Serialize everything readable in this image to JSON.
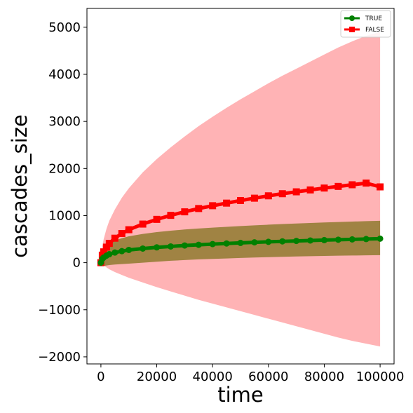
{
  "chart_data": {
    "type": "line",
    "xlabel": "time",
    "ylabel": "cascades_size",
    "xlim": [
      -5000,
      105000
    ],
    "ylim": [
      -2150,
      5400
    ],
    "xticks": [
      0,
      20000,
      40000,
      60000,
      80000,
      100000
    ],
    "xtick_labels": [
      "0",
      "20000",
      "40000",
      "60000",
      "80000",
      "100000"
    ],
    "yticks": [
      -2000,
      -1000,
      0,
      1000,
      2000,
      3000,
      4000,
      5000
    ],
    "ytick_labels": [
      "−2000",
      "−1000",
      "0",
      "1000",
      "2000",
      "3000",
      "4000",
      "5000"
    ],
    "grid": false,
    "legend": {
      "placement": "top-right"
    },
    "x": [
      0,
      500,
      1000,
      2000,
      3000,
      5000,
      7500,
      10000,
      15000,
      20000,
      25000,
      30000,
      35000,
      40000,
      45000,
      50000,
      55000,
      60000,
      65000,
      70000,
      75000,
      80000,
      85000,
      90000,
      95000,
      100000
    ],
    "series": [
      {
        "name": "TRUE",
        "color": "#008000",
        "marker": "circle",
        "values": [
          0,
          80,
          110,
          150,
          180,
          215,
          245,
          270,
          300,
          325,
          345,
          365,
          380,
          395,
          408,
          420,
          432,
          443,
          453,
          462,
          471,
          480,
          488,
          495,
          502,
          510
        ],
        "band_upper": [
          0,
          230,
          290,
          360,
          410,
          470,
          520,
          560,
          610,
          650,
          680,
          705,
          725,
          745,
          762,
          778,
          793,
          807,
          820,
          832,
          843,
          854,
          864,
          873,
          882,
          890
        ],
        "band_lower": [
          0,
          -70,
          -70,
          -60,
          -50,
          -40,
          -30,
          -20,
          0,
          20,
          40,
          55,
          70,
          80,
          90,
          100,
          110,
          118,
          125,
          132,
          138,
          143,
          148,
          152,
          156,
          160
        ],
        "band_color": "#8f7a2f"
      },
      {
        "name": "FALSE",
        "color": "#ff0000",
        "marker": "square",
        "values": [
          0,
          160,
          230,
          330,
          410,
          520,
          620,
          700,
          820,
          920,
          1005,
          1080,
          1150,
          1210,
          1265,
          1320,
          1370,
          1420,
          1465,
          1505,
          1545,
          1585,
          1620,
          1655,
          1690,
          1610
        ],
        "band_upper": [
          0,
          350,
          500,
          720,
          890,
          1130,
          1380,
          1580,
          1920,
          2200,
          2450,
          2680,
          2900,
          3100,
          3290,
          3470,
          3640,
          3810,
          3970,
          4120,
          4270,
          4420,
          4570,
          4700,
          4820,
          4900
        ],
        "band_lower": [
          0,
          -30,
          -60,
          -100,
          -140,
          -200,
          -260,
          -320,
          -420,
          -520,
          -610,
          -700,
          -790,
          -870,
          -950,
          -1030,
          -1110,
          -1190,
          -1270,
          -1350,
          -1430,
          -1510,
          -1590,
          -1660,
          -1720,
          -1780
        ],
        "band_color": "#ffb3b5"
      }
    ]
  }
}
